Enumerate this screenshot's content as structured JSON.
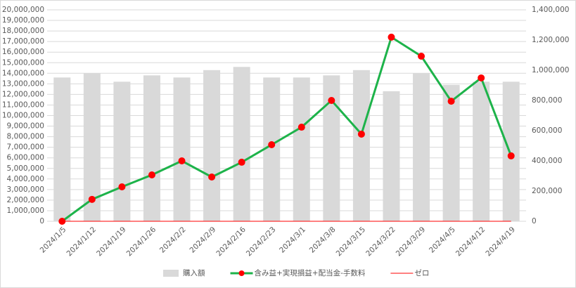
{
  "chart_data": {
    "type": "combo",
    "categories": [
      "2024/1/5",
      "2024/1/12",
      "2024/1/19",
      "2024/1/26",
      "2024/2/2",
      "2024/2/9",
      "2024/2/16",
      "2024/2/23",
      "2024/3/1",
      "2024/3/8",
      "2024/3/15",
      "2024/3/22",
      "2024/3/29",
      "2024/4/5",
      "2024/4/12",
      "2024/4/19"
    ],
    "series": [
      {
        "name": "購入額",
        "type": "bar",
        "axis": "y",
        "color": "#d9d9d9",
        "values": [
          13600000,
          14000000,
          13200000,
          13800000,
          13600000,
          14300000,
          14600000,
          13600000,
          13600000,
          13800000,
          14300000,
          12300000,
          14000000,
          12900000,
          13200000,
          13200000
        ]
      },
      {
        "name": "含み益+実現損益+配当金-手数料",
        "type": "line",
        "axis": "y2",
        "color": "#1db34a",
        "marker_color": "#ff0000",
        "values": [
          0,
          145000,
          228000,
          307000,
          400000,
          293000,
          391000,
          507000,
          623000,
          800000,
          577000,
          1219000,
          1093000,
          795000,
          949000,
          433000
        ]
      },
      {
        "name": "ゼロ",
        "type": "line",
        "axis": "y",
        "color": "#ff0000",
        "values": [
          0,
          0,
          0,
          0,
          0,
          0,
          0,
          0,
          0,
          0,
          0,
          0,
          0,
          0,
          0,
          0
        ]
      }
    ],
    "ylim": [
      0,
      20000000
    ],
    "yticks": [
      0,
      {
        "value": 1000000,
        "label": "1,000,000"
      },
      {
        "value": 2000000,
        "label": "2,000,000"
      },
      {
        "value": 3000000,
        "label": "3,000,000"
      },
      {
        "value": 4000000,
        "label": "4,000,000"
      },
      {
        "value": 5000000,
        "label": "5,000,000"
      },
      {
        "value": 6000000,
        "label": "6,000,000"
      },
      {
        "value": 7000000,
        "label": "7,000,000"
      },
      {
        "value": 8000000,
        "label": "8,000,000"
      },
      {
        "value": 9000000,
        "label": "9,000,000"
      },
      {
        "value": 10000000,
        "label": "10,000,000"
      },
      {
        "value": 11000000,
        "label": "11,000,000"
      },
      {
        "value": 12000000,
        "label": "12,000,000"
      },
      {
        "value": 13000000,
        "label": "13,000,000"
      },
      {
        "value": 14000000,
        "label": "14,000,000"
      },
      {
        "value": 15000000,
        "label": "15,000,000"
      },
      {
        "value": 16000000,
        "label": "16,000,000"
      },
      {
        "value": 17000000,
        "label": "17,000,000"
      },
      {
        "value": 18000000,
        "label": "18,000,000"
      },
      {
        "value": 19000000,
        "label": "19,000,000"
      },
      {
        "value": 20000000,
        "label": "20,000,000"
      }
    ],
    "y2lim": [
      0,
      1400000
    ],
    "y2ticks": [
      0,
      {
        "value": 200000,
        "label": "200,000"
      },
      {
        "value": 400000,
        "label": "400,000"
      },
      {
        "value": 600000,
        "label": "600,000"
      },
      {
        "value": 800000,
        "label": "800,000"
      },
      {
        "value": 1000000,
        "label": "1,000,000"
      },
      {
        "value": 1200000,
        "label": "1,200,000"
      },
      {
        "value": 1400000,
        "label": "1,400,000"
      }
    ],
    "grid": true,
    "legend": "bottom"
  }
}
